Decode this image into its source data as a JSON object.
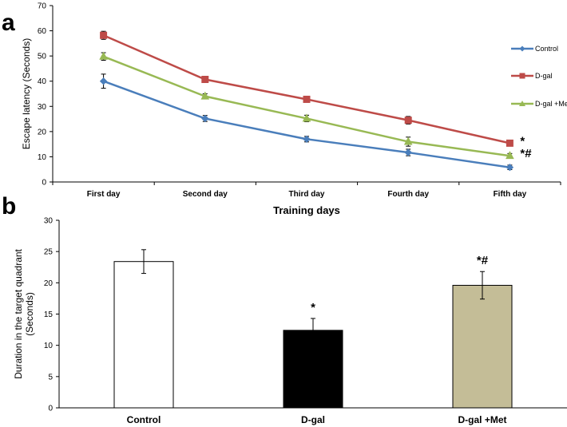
{
  "panels": {
    "a_label": "a",
    "b_label": "b"
  },
  "colors": {
    "control": "#4a7ebb",
    "dgal": "#be4b48",
    "dgal_met": "#98b954",
    "bar_control": "#ffffff",
    "bar_dgal": "#000000",
    "bar_dgal_met": "#c4bd97"
  },
  "chart_data": [
    {
      "type": "line",
      "categories": [
        "First day",
        "Second day",
        "Third day",
        "Fourth day",
        "Fifth day"
      ],
      "ylabel": "Escape latency (Seconds)",
      "xlabel": "Training days",
      "ylim": [
        0,
        70
      ],
      "yticks": [
        0,
        10,
        20,
        30,
        40,
        50,
        60,
        70
      ],
      "legend_position": "right",
      "grid": false,
      "series": [
        {
          "name": "Control",
          "marker": "diamond",
          "values": [
            40,
            25.2,
            17,
            11.7,
            5.8
          ],
          "errors": [
            2.8,
            1.2,
            1.1,
            1.3,
            0.9
          ]
        },
        {
          "name": "D-gal",
          "marker": "square",
          "values": [
            58.2,
            40.7,
            32.8,
            24.5,
            15.4
          ],
          "errors": [
            1.6,
            1.2,
            0.8,
            1.5,
            0.7
          ]
        },
        {
          "name": "D-gal +Met",
          "marker": "triangle",
          "values": [
            49.8,
            34,
            25.2,
            16,
            10.4
          ],
          "errors": [
            1.5,
            1.0,
            1.3,
            1.8,
            0.9
          ]
        }
      ],
      "annotations": [
        {
          "series": "D-gal",
          "text": "*"
        },
        {
          "series": "D-gal +Met",
          "text": "*#"
        }
      ]
    },
    {
      "type": "bar",
      "categories": [
        "Control",
        "D-gal",
        "D-gal +Met"
      ],
      "ylabel_lines": [
        "Duration in the target quadrant",
        "(Seconds)"
      ],
      "ylim": [
        0,
        30
      ],
      "yticks": [
        0,
        5,
        10,
        15,
        20,
        25,
        30
      ],
      "grid": false,
      "values": [
        23.4,
        12.4,
        19.6
      ],
      "errors": [
        1.9,
        1.9,
        2.2
      ],
      "annotations": [
        "",
        "*",
        "*#"
      ]
    }
  ]
}
